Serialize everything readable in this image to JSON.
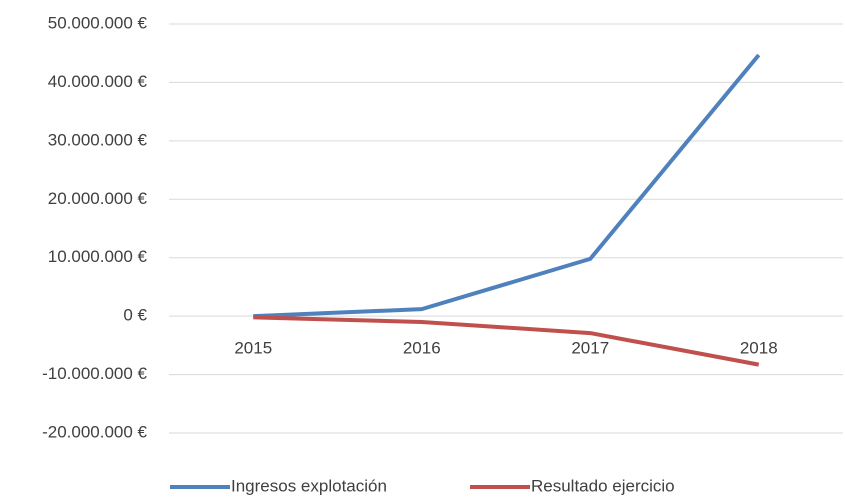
{
  "chart_data": {
    "type": "line",
    "categories": [
      "2015",
      "2016",
      "2017",
      "2018"
    ],
    "series": [
      {
        "name": "Ingresos explotación",
        "color": "#4f81bd",
        "values": [
          0,
          1200000,
          9800000,
          44700000
        ]
      },
      {
        "name": "Resultado ejercicio",
        "color": "#c0504d",
        "values": [
          -200000,
          -1000000,
          -2900000,
          -8300000
        ]
      }
    ],
    "ylim": [
      -20000000,
      50000000
    ],
    "yticks": [
      {
        "value": -20000000,
        "label": "-20.000.000 €"
      },
      {
        "value": -10000000,
        "label": "-10.000.000 €"
      },
      {
        "value": 0,
        "label": "0 €"
      },
      {
        "value": 10000000,
        "label": "10.000.000 €"
      },
      {
        "value": 20000000,
        "label": "20.000.000 €"
      },
      {
        "value": 30000000,
        "label": "30.000.000 €"
      },
      {
        "value": 40000000,
        "label": "40.000.000 €"
      },
      {
        "value": 50000000,
        "label": "50.000.000 €"
      }
    ],
    "grid": true,
    "legend": "bottom"
  }
}
